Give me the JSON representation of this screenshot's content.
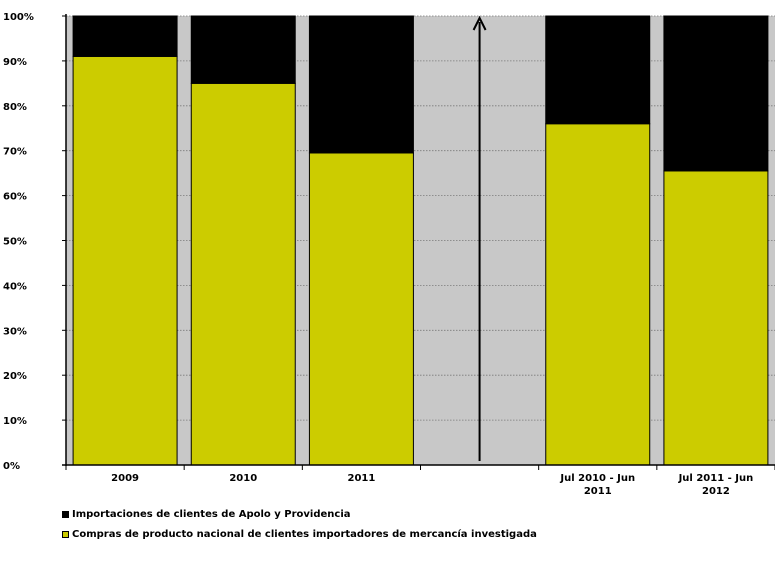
{
  "chart_data": {
    "type": "bar",
    "stacked": true,
    "categories": [
      [
        "2009"
      ],
      [
        "2010"
      ],
      [
        "2011"
      ],
      [
        ""
      ],
      [
        "Jul 2010 - Jun",
        "2011"
      ],
      [
        "Jul 2011 - Jun",
        "2012"
      ]
    ],
    "series": [
      {
        "name": "Compras de producto nacional de clientes importadores de mercancía investigada",
        "color": "#cccc00",
        "values": [
          91,
          85,
          69.5,
          null,
          76,
          65.5
        ]
      },
      {
        "name": "Importaciones de clientes de Apolo y Providencia",
        "color": "#000000",
        "values": [
          9,
          15,
          30.5,
          null,
          24,
          34.5
        ]
      }
    ],
    "separator_category_index": 3,
    "separator_color": "#c8c8c8",
    "ylim": [
      0,
      100
    ],
    "yticks": [
      "0%",
      "10%",
      "20%",
      "30%",
      "40%",
      "50%",
      "60%",
      "70%",
      "80%",
      "90%",
      "100%"
    ],
    "grid": true,
    "legend_position": "bottom-left"
  }
}
